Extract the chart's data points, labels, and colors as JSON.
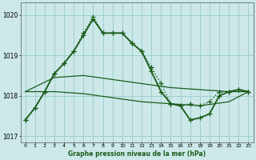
{
  "title": "Graphe pression niveau de la mer (hPa)",
  "background_color": "#cce8e8",
  "grid_color": "#99cccc",
  "line_color": "#1a5c1a",
  "xlim": [
    -0.5,
    23.5
  ],
  "ylim": [
    1016.85,
    1020.3
  ],
  "yticks": [
    1017,
    1018,
    1019,
    1020
  ],
  "xticks": [
    0,
    1,
    2,
    3,
    4,
    5,
    6,
    7,
    8,
    9,
    10,
    11,
    12,
    13,
    14,
    15,
    16,
    17,
    18,
    19,
    20,
    21,
    22,
    23
  ],
  "series": [
    {
      "x": [
        0,
        1,
        2,
        3,
        4,
        5,
        6,
        7,
        8,
        9,
        10,
        11,
        12,
        13,
        14,
        15,
        16,
        17,
        18,
        19,
        20,
        21,
        22,
        23
      ],
      "y": [
        1017.4,
        1017.7,
        1018.1,
        1018.55,
        1018.8,
        1019.1,
        1019.55,
        1019.95,
        1019.55,
        1019.55,
        1019.55,
        1019.3,
        1019.1,
        1018.7,
        1018.3,
        1017.8,
        1017.75,
        1017.8,
        1017.75,
        1017.85,
        1018.1,
        1018.1,
        1018.15,
        1018.1
      ],
      "marker": "+",
      "linestyle": "dotted",
      "linewidth": 1.0,
      "markersize": 4
    },
    {
      "x": [
        0,
        1,
        2,
        3,
        4,
        5,
        6,
        7,
        8,
        9,
        10,
        11,
        12,
        13,
        14,
        15,
        16,
        17,
        18,
        19,
        20,
        21,
        22,
        23
      ],
      "y": [
        1017.4,
        1017.7,
        1018.1,
        1018.55,
        1018.8,
        1019.1,
        1019.5,
        1019.9,
        1019.55,
        1019.55,
        1019.55,
        1019.3,
        1019.1,
        1018.6,
        1018.1,
        1017.8,
        1017.75,
        1017.4,
        1017.45,
        1017.55,
        1018.0,
        1018.1,
        1018.15,
        1018.1
      ],
      "marker": "+",
      "linestyle": "solid",
      "linewidth": 1.3,
      "markersize": 4
    },
    {
      "x": [
        0,
        3,
        6,
        9,
        12,
        15,
        18,
        21,
        23
      ],
      "y": [
        1018.1,
        1018.45,
        1018.5,
        1018.4,
        1018.3,
        1018.2,
        1018.15,
        1018.1,
        1018.1
      ],
      "marker": null,
      "linestyle": "solid",
      "linewidth": 0.9,
      "markersize": 0
    },
    {
      "x": [
        0,
        3,
        6,
        9,
        12,
        15,
        18,
        21,
        23
      ],
      "y": [
        1018.1,
        1018.1,
        1018.05,
        1017.95,
        1017.85,
        1017.8,
        1017.75,
        1017.85,
        1018.1
      ],
      "marker": null,
      "linestyle": "solid",
      "linewidth": 0.9,
      "markersize": 0
    }
  ]
}
